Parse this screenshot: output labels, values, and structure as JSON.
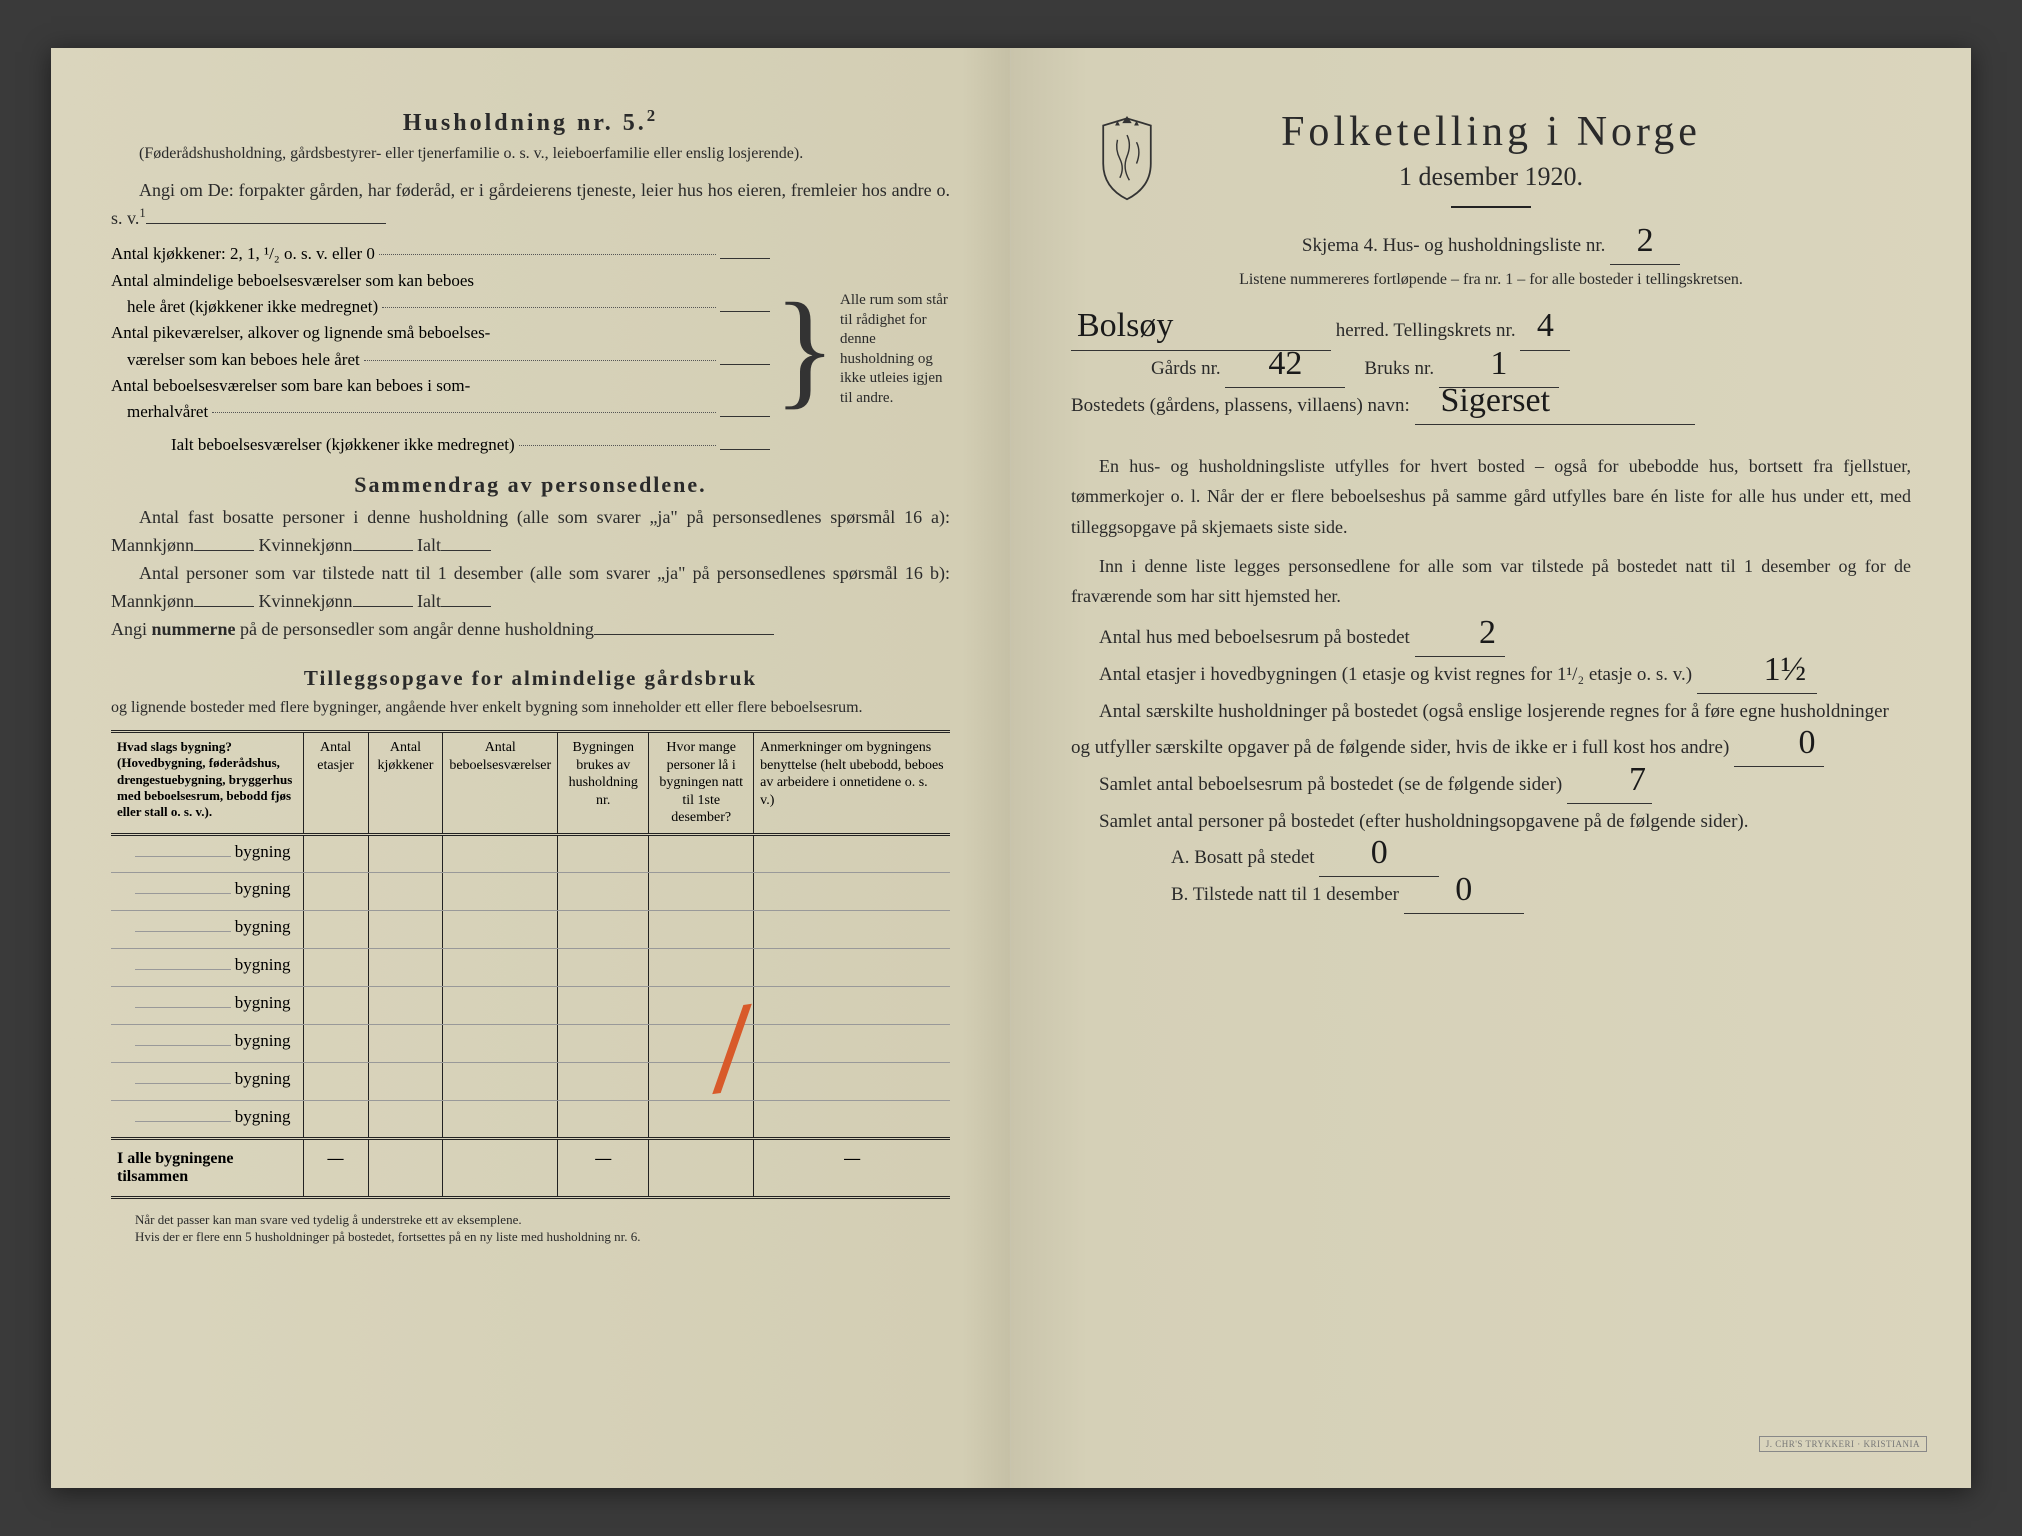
{
  "left": {
    "household_title": "Husholdning nr. 5.",
    "household_sup": "2",
    "household_sub": "(Føderådshusholdning, gårdsbestyrer- eller tjenerfamilie o. s. v., leieboerfamilie eller enslig losjerende).",
    "angi_line_1": "Angi om De: forpakter gården, har føderåd, er i gårdeierens tjeneste, leier hus hos eieren, fremleier hos andre o. s. v.",
    "angi_sup": "1",
    "kitchens_label": "Antal kjøkkener: 2, 1, ¹/₂ o. s. v. eller 0",
    "rooms_line_1a": "Antal almindelige beboelsesværelser som kan beboes",
    "rooms_line_1b": "hele året (kjøkkener ikke medregnet)",
    "rooms_line_2a": "Antal pikeværelser, alkover og lignende små beboelses-",
    "rooms_line_2b": "værelser som kan beboes hele året",
    "rooms_line_3a": "Antal beboelsesværelser som bare kan beboes i som-",
    "rooms_line_3b": "merhalvåret",
    "rooms_total": "Ialt beboelsesværelser (kjøkkener ikke medregnet)",
    "brace_text": "Alle rum som står til rådighet for denne husholdning og ikke utleies igjen til andre.",
    "summary_title": "Sammendrag av personsedlene.",
    "summary_line_1": "Antal fast bosatte personer i denne husholdning (alle som svarer „ja\" på personsedlenes spørsmål 16 a): Mannkjønn",
    "summary_kvinne": "Kvinnekjønn",
    "summary_ialt": "Ialt",
    "summary_line_2": "Antal personer som var tilstede natt til 1 desember (alle som svarer „ja\" på personsedlenes spørsmål 16 b): Mannkjønn",
    "summary_line_3_a": "Angi ",
    "summary_line_3_b": "nummerne",
    "summary_line_3_c": " på de personsedler som angår denne husholdning",
    "tillegg_title": "Tilleggsopgave for almindelige gårdsbruk",
    "tillegg_sub": "og lignende bosteder med flere bygninger, angående hver enkelt bygning som inneholder ett eller flere beboelsesrum.",
    "table": {
      "headers": [
        "Hvad slags bygning?\n(Hovedbygning, føderådshus, drengestuebygning, bryggerhus med beboelsesrum, bebodd fjøs eller stall o. s. v.).",
        "Antal etasjer",
        "Antal kjøkkener",
        "Antal beboelsesværelser",
        "Bygningen brukes av husholdning nr.",
        "Hvor mange personer lå i bygningen natt til 1ste desember?",
        "Anmerkninger om bygningens benyttelse (helt ubebodd, beboes av arbeidere i onnetidene o. s. v.)"
      ],
      "row_label": "bygning",
      "row_count": 8,
      "footer_label": "I alle bygningene tilsammen",
      "footer_dashes": "—"
    },
    "footnote_1": "Når det passer kan man svare ved tydelig å understreke ett av eksemplene.",
    "footnote_2": "Hvis der er flere enn 5 husholdninger på bostedet, fortsettes på en ny liste med husholdning nr. 6."
  },
  "right": {
    "title": "Folketelling i Norge",
    "date": "1 desember 1920.",
    "skjema_a": "Skjema 4.   Hus- og husholdningsliste nr.",
    "liste_nr": "2",
    "listene_text": "Listene nummereres fortløpende – fra nr. 1 – for alle bosteder i tellingskretsen.",
    "herred_value": "Bolsøy",
    "herred_label": "herred.   Tellingskrets nr.",
    "tellingskrets_nr": "4",
    "gards_label": "Gårds nr.",
    "gards_nr": "42",
    "bruks_label": "Bruks nr.",
    "bruks_nr": "1",
    "bosted_label": "Bostedets (gårdens, plassens, villaens) navn:",
    "bosted_value": "Sigerset",
    "para1": "En hus- og husholdningsliste utfylles for hvert bosted – også for ubebodde hus, bortsett fra fjellstuer, tømmerkojer o. l.  Når der er flere beboelseshus på samme gård utfylles bare én liste for alle hus under ett, med tilleggsopgave på skjemaets siste side.",
    "para2": "Inn i denne liste legges personsedlene for alle som var tilstede på bostedet natt til 1 desember og for de fraværende som har sitt hjemsted her.",
    "antal_hus_label": "Antal hus med beboelsesrum på bostedet",
    "antal_hus_value": "2",
    "etasjer_label_a": "Antal etasjer i hovedbygningen (1 etasje og kvist regnes for 1¹/₂ etasje o. s. v.)",
    "etasjer_value": "1½",
    "saerskilte_label": "Antal særskilte husholdninger på bostedet (også enslige losjerende regnes for å føre egne husholdninger og utfyller særskilte opgaver på de følgende sider, hvis de ikke er i full kost hos andre)",
    "saerskilte_value": "0",
    "samlet_rum_label": "Samlet antal beboelsesrum på bostedet (se de følgende sider)",
    "samlet_rum_value": "7",
    "samlet_pers_label": "Samlet antal personer på bostedet (efter husholdningsopgavene på de følgende sider).",
    "bosatt_label": "A.  Bosatt på stedet",
    "bosatt_value": "0",
    "tilstede_label": "B.  Tilstede natt til 1 desember",
    "tilstede_value": "0",
    "stamp_text": "J. CHR'S TRYKKERI · KRISTIANIA"
  }
}
